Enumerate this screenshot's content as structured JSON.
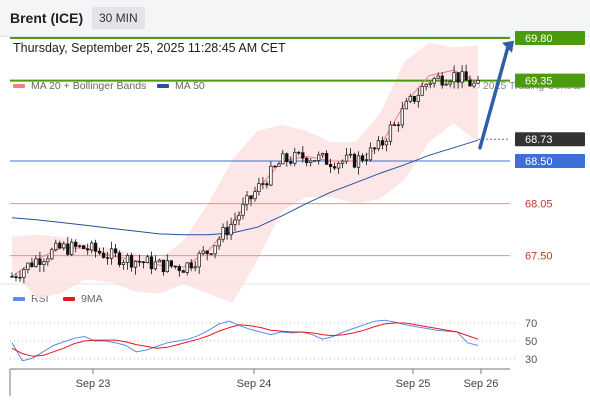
{
  "header": {
    "instrument": "Brent (ICE)",
    "interval": "30 MIN",
    "datetime": "Thursday, September 25, 2025 11:28:45 AM CET"
  },
  "legend": {
    "ma20_label": "MA 20 + Bollinger Bands",
    "ma50_label": "MA 50",
    "copyright": "Research © 2025 Trading Central",
    "rsi_label": "RSI",
    "rsi_ma_label": "9MA"
  },
  "colors": {
    "ma20": "#f08080",
    "ma50": "#2a4f9e",
    "bollinger_fill": "#fde3e3",
    "resistance": "#4c9a0e",
    "support": "#f28b8b",
    "current": "#3d6fd8",
    "last_price_box": "#333333",
    "rsi": "#5b8ce8",
    "rsi_ma": "#e31a1c",
    "arrow": "#2f5fa8"
  },
  "chart_data": [
    {
      "type": "candlestick",
      "title": "",
      "x_ticks": [
        "Sep 23",
        "Sep 24",
        "Sep 25",
        "Sep 26"
      ],
      "ylim": [
        67.3,
        70.0
      ],
      "levels": [
        {
          "value": "69.80",
          "kind": "resistance"
        },
        {
          "value": "69.35",
          "kind": "resistance"
        },
        {
          "value": "68.73",
          "kind": "last-price"
        },
        {
          "value": "68.50",
          "kind": "current"
        },
        {
          "value": "68.05",
          "kind": "support"
        },
        {
          "value": "67.50",
          "kind": "support"
        }
      ],
      "projection": {
        "from": 68.64,
        "to": 69.75,
        "direction": "up"
      },
      "ma50": [
        67.9,
        67.88,
        67.85,
        67.82,
        67.79,
        67.76,
        67.73,
        67.72,
        67.72,
        67.74,
        67.8,
        67.92,
        68.05,
        68.17,
        68.27,
        68.37,
        68.46,
        68.56,
        68.64,
        68.72
      ],
      "ma20": [
        67.28,
        67.46,
        67.58,
        67.58,
        67.5,
        67.45,
        67.4,
        67.38,
        67.55,
        67.85,
        68.2,
        68.5,
        68.55,
        68.5,
        68.5,
        68.65,
        69.1,
        69.4,
        69.46,
        69.33
      ],
      "bollinger_upper": [
        67.7,
        67.72,
        67.7,
        67.62,
        67.58,
        67.52,
        67.46,
        67.66,
        68.05,
        68.52,
        68.82,
        68.88,
        68.82,
        68.7,
        68.7,
        69.0,
        69.55,
        69.75,
        69.7,
        69.72
      ],
      "bollinger_lower": [
        67.35,
        67.05,
        67.1,
        67.25,
        67.22,
        67.12,
        67.1,
        67.2,
        67.1,
        67.0,
        67.45,
        67.97,
        68.12,
        68.12,
        68.05,
        68.1,
        68.3,
        68.7,
        68.9,
        68.7
      ]
    },
    {
      "type": "line",
      "title": "",
      "series": [
        {
          "name": "RSI"
        },
        {
          "name": "9MA"
        }
      ],
      "ylim": [
        20,
        80
      ],
      "y_ticks": [
        70,
        50,
        30
      ],
      "rsi": [
        48,
        28,
        31,
        38,
        45,
        49,
        53,
        55,
        50,
        50,
        48,
        45,
        38,
        40,
        44,
        48,
        50,
        52,
        56,
        62,
        69,
        72,
        67,
        63,
        60,
        57,
        60,
        59,
        60,
        57,
        52,
        55,
        60,
        64,
        68,
        72,
        73,
        71,
        68,
        66,
        64,
        62,
        61,
        60,
        48,
        45
      ],
      "rsi_ma": [
        42,
        36,
        33,
        34,
        38,
        42,
        47,
        50,
        51,
        51,
        51,
        49,
        46,
        44,
        42,
        43,
        46,
        49,
        52,
        56,
        61,
        65,
        68,
        67,
        65,
        62,
        61,
        60,
        60,
        59,
        57,
        56,
        57,
        59,
        62,
        66,
        69,
        70,
        70,
        68,
        66,
        64,
        62,
        60,
        56,
        52
      ]
    }
  ]
}
